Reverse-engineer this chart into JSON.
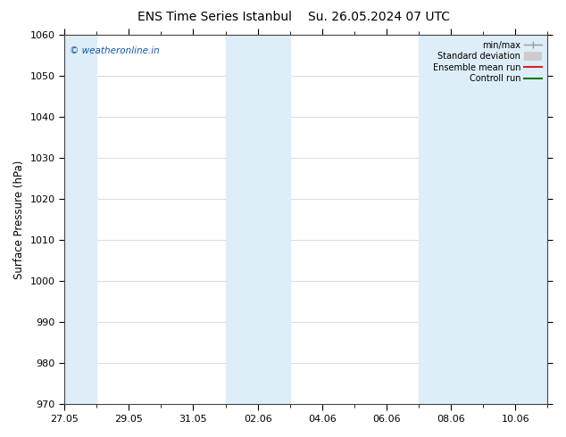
{
  "title_left": "ENS Time Series Istanbul",
  "title_right": "Su. 26.05.2024 07 UTC",
  "ylabel": "Surface Pressure (hPa)",
  "ylim": [
    970,
    1060
  ],
  "yticks": [
    970,
    980,
    990,
    1000,
    1010,
    1020,
    1030,
    1040,
    1050,
    1060
  ],
  "xtick_labels": [
    "27.05",
    "29.05",
    "31.05",
    "02.06",
    "04.06",
    "06.06",
    "08.06",
    "10.06"
  ],
  "xtick_positions": [
    0,
    2,
    4,
    6,
    8,
    10,
    12,
    14
  ],
  "xlim": [
    0,
    15
  ],
  "shaded_band_color": "#ddeef8",
  "band_starts": [
    0,
    5.0,
    6.0,
    11.0,
    12.0
  ],
  "band_widths": [
    1.0,
    1.0,
    1.0,
    1.0,
    3.0
  ],
  "watermark": "© weatheronline.in",
  "watermark_color": "#1155aa",
  "legend_labels": [
    "min/max",
    "Standard deviation",
    "Ensemble mean run",
    "Controll run"
  ],
  "background_color": "#ffffff",
  "title_fontsize": 10,
  "tick_fontsize": 8,
  "ylabel_fontsize": 8.5
}
